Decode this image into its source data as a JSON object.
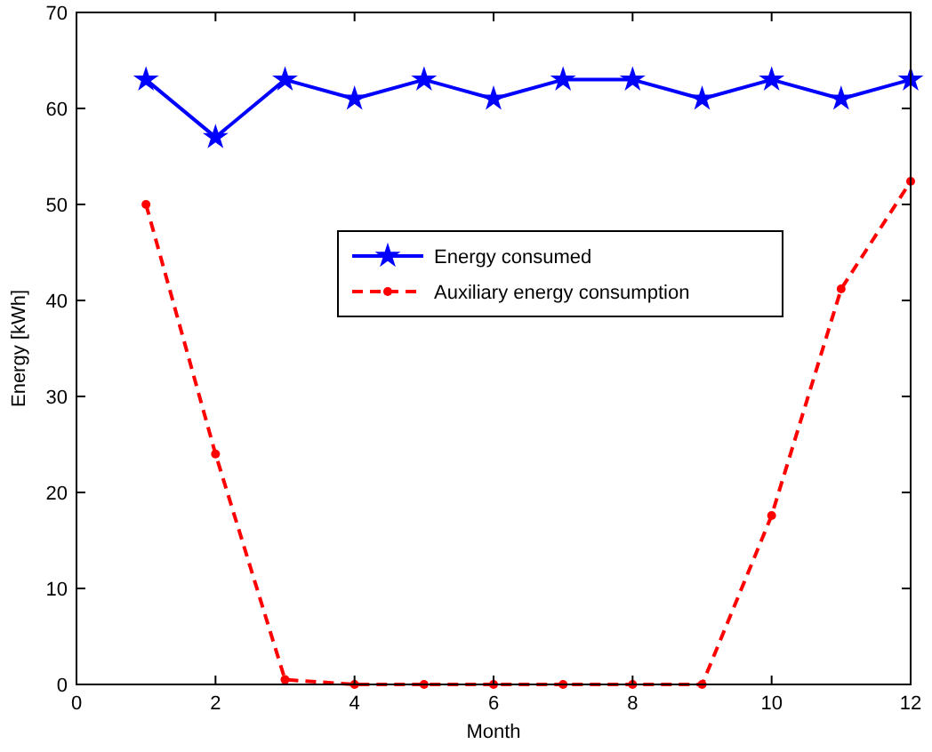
{
  "chart_data": {
    "type": "line",
    "xlabel": "Month",
    "ylabel": "Energy [kWh]",
    "x": [
      1,
      2,
      3,
      4,
      5,
      6,
      7,
      8,
      9,
      10,
      11,
      12
    ],
    "series": [
      {
        "name": "Energy consumed",
        "color": "#0000ff",
        "line_style": "solid",
        "marker": "star",
        "values": [
          63,
          57,
          63,
          61,
          63,
          61,
          63,
          63,
          61,
          63,
          61,
          63
        ]
      },
      {
        "name": "Auxiliary energy consumption",
        "color": "#ff0000",
        "line_style": "dashed",
        "marker": "circle",
        "values": [
          50,
          24,
          0.5,
          0,
          0,
          0,
          0,
          0,
          0,
          17.6,
          41.2,
          52.4
        ]
      }
    ],
    "xlim": [
      0,
      12
    ],
    "xticks": [
      0,
      2,
      4,
      6,
      8,
      10,
      12
    ],
    "ylim": [
      0,
      70
    ],
    "yticks": [
      0,
      10,
      20,
      30,
      40,
      50,
      60,
      70
    ],
    "grid": false,
    "legend": "right"
  }
}
